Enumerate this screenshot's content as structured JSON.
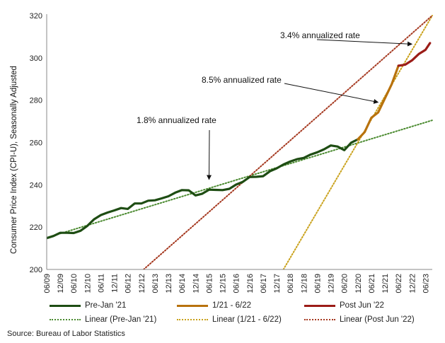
{
  "chart_data": {
    "type": "line",
    "ylabel": "Consumer Price Index (CPI-U), Seasonally Adjusted",
    "xlabel": "",
    "ylim": [
      200,
      320
    ],
    "yticks": [
      200,
      220,
      240,
      260,
      280,
      300,
      320
    ],
    "x_tick_labels": [
      "06/09",
      "12/09",
      "06/10",
      "12/10",
      "06/11",
      "12/11",
      "06/12",
      "12/12",
      "06/13",
      "12/13",
      "06/14",
      "12/14",
      "06/15",
      "12/15",
      "06/16",
      "12/16",
      "06/17",
      "12/17",
      "06/18",
      "12/18",
      "06/19",
      "12/19",
      "06/20",
      "12/20",
      "06/21",
      "12/21",
      "06/22",
      "12/22",
      "06/23"
    ],
    "series": [
      {
        "name": "Pre-Jan '21",
        "color": "#1e4d13",
        "style": "solid",
        "x": [
          "06/09",
          "09/09",
          "12/09",
          "03/10",
          "06/10",
          "09/10",
          "12/10",
          "03/11",
          "06/11",
          "09/11",
          "12/11",
          "03/12",
          "06/12",
          "09/12",
          "12/12",
          "03/13",
          "06/13",
          "09/13",
          "12/13",
          "03/14",
          "06/14",
          "09/14",
          "12/14",
          "03/15",
          "06/15",
          "09/15",
          "12/15",
          "03/16",
          "06/16",
          "09/16",
          "12/16",
          "03/17",
          "06/17",
          "09/17",
          "12/17",
          "03/18",
          "06/18",
          "09/18",
          "12/18",
          "03/19",
          "06/19",
          "09/19",
          "12/19",
          "03/20",
          "06/20",
          "09/20",
          "12/20"
        ],
        "y": [
          214.8,
          215.8,
          217.3,
          217.3,
          217.2,
          218.3,
          220.6,
          223.7,
          225.7,
          226.9,
          227.9,
          229.0,
          228.6,
          231.2,
          231.2,
          232.5,
          232.7,
          233.6,
          234.6,
          236.3,
          237.5,
          237.4,
          235.0,
          235.8,
          237.7,
          237.6,
          237.5,
          238.1,
          240.1,
          241.4,
          243.7,
          243.8,
          244.1,
          246.4,
          247.8,
          249.6,
          251.0,
          252.1,
          252.7,
          254.3,
          255.4,
          256.8,
          258.6,
          258.1,
          256.4,
          259.9,
          261.5
        ]
      },
      {
        "name": "1/21 - 6/22",
        "color": "#b8720d",
        "style": "solid",
        "x": [
          "12/20",
          "03/21",
          "06/21",
          "09/21",
          "12/21",
          "03/22",
          "06/22"
        ],
        "y": [
          261.5,
          264.9,
          271.7,
          274.2,
          280.9,
          287.5,
          296.3
        ]
      },
      {
        "name": "Post Jun '22",
        "color": "#9b1c17",
        "style": "solid",
        "x": [
          "06/22",
          "09/22",
          "12/22",
          "03/23",
          "06/23",
          "08/23"
        ],
        "y": [
          296.3,
          296.8,
          298.8,
          301.8,
          303.8,
          307.0
        ]
      },
      {
        "name": "Linear (Pre-Jan '21)",
        "color": "#4a8a2f",
        "style": "dotted",
        "x": [
          "06/09",
          "09/23"
        ],
        "y": [
          215.0,
          270.5
        ]
      },
      {
        "name": "Linear (1/21 - 6/22)",
        "color": "#c9a11a",
        "style": "dotted",
        "x": [
          "03/18",
          "09/23"
        ],
        "y": [
          200.0,
          320.0
        ]
      },
      {
        "name": "Linear (Post Jun '22)",
        "color": "#a5381f",
        "style": "dotted",
        "x": [
          "01/13",
          "09/23"
        ],
        "y": [
          200.0,
          320.0
        ]
      }
    ],
    "annotations": [
      {
        "text": "3.4% annualized rate",
        "x": "12/22",
        "y": 306.5
      },
      {
        "text": "8.5% annualized rate",
        "x": "09/21",
        "y": 279.0
      },
      {
        "text": "1.8% annualized rate",
        "x": "06/15",
        "y": 242.5
      }
    ],
    "legend_position": "bottom",
    "grid": false
  },
  "source_text": "Source: Bureau of Labor Statistics"
}
